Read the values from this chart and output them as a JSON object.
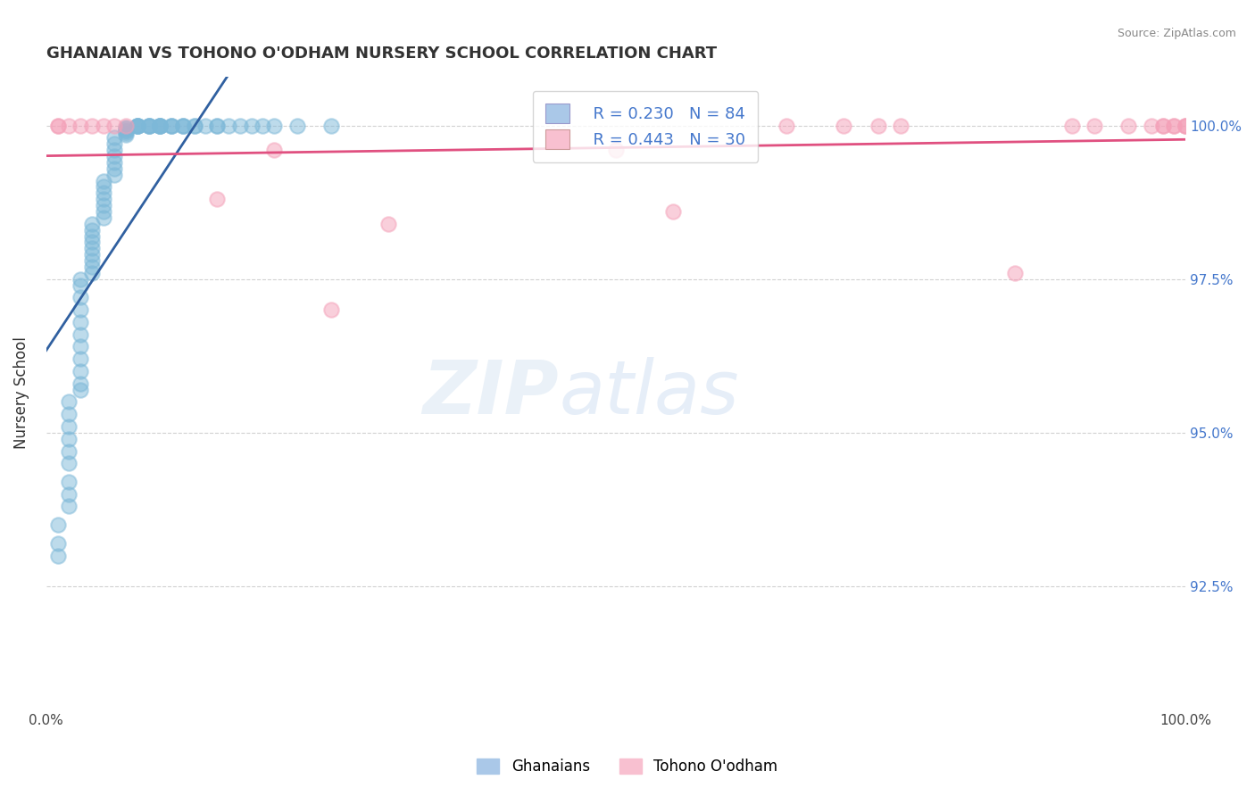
{
  "title": "GHANAIAN VS TOHONO O'ODHAM NURSERY SCHOOL CORRELATION CHART",
  "source": "Source: ZipAtlas.com",
  "ylabel": "Nursery School",
  "xlim": [
    0.0,
    1.0
  ],
  "ylim": [
    0.905,
    1.008
  ],
  "yticks": [
    0.925,
    0.95,
    0.975,
    1.0
  ],
  "ytick_labels": [
    "92.5%",
    "95.0%",
    "97.5%",
    "100.0%"
  ],
  "xticks": [
    0.0,
    0.25,
    0.5,
    0.75,
    1.0
  ],
  "xtick_labels": [
    "0.0%",
    "",
    "",
    "",
    "100.0%"
  ],
  "legend_r_blue": "R = 0.230",
  "legend_n_blue": "N = 84",
  "legend_r_pink": "R = 0.443",
  "legend_n_pink": "N = 30",
  "blue_color": "#7db8d8",
  "pink_color": "#f4a0b8",
  "blue_line_color": "#3060a0",
  "pink_line_color": "#e05080",
  "blue_x": [
    0.01,
    0.01,
    0.01,
    0.02,
    0.02,
    0.02,
    0.02,
    0.02,
    0.02,
    0.02,
    0.02,
    0.02,
    0.03,
    0.03,
    0.03,
    0.03,
    0.03,
    0.03,
    0.03,
    0.03,
    0.03,
    0.03,
    0.03,
    0.04,
    0.04,
    0.04,
    0.04,
    0.04,
    0.04,
    0.04,
    0.04,
    0.04,
    0.05,
    0.05,
    0.05,
    0.05,
    0.05,
    0.05,
    0.05,
    0.06,
    0.06,
    0.06,
    0.06,
    0.06,
    0.06,
    0.06,
    0.07,
    0.07,
    0.07,
    0.07,
    0.07,
    0.07,
    0.08,
    0.08,
    0.08,
    0.08,
    0.08,
    0.09,
    0.09,
    0.09,
    0.09,
    0.1,
    0.1,
    0.1,
    0.1,
    0.1,
    0.11,
    0.11,
    0.11,
    0.12,
    0.12,
    0.12,
    0.13,
    0.13,
    0.14,
    0.15,
    0.15,
    0.16,
    0.17,
    0.18,
    0.19,
    0.2,
    0.22,
    0.25
  ],
  "blue_y": [
    0.93,
    0.932,
    0.935,
    0.938,
    0.94,
    0.942,
    0.945,
    0.947,
    0.949,
    0.951,
    0.953,
    0.955,
    0.957,
    0.958,
    0.96,
    0.962,
    0.964,
    0.966,
    0.968,
    0.97,
    0.972,
    0.974,
    0.975,
    0.976,
    0.977,
    0.978,
    0.979,
    0.98,
    0.981,
    0.982,
    0.983,
    0.984,
    0.985,
    0.986,
    0.987,
    0.988,
    0.989,
    0.99,
    0.991,
    0.992,
    0.993,
    0.994,
    0.995,
    0.996,
    0.997,
    0.998,
    0.9985,
    0.9988,
    0.999,
    0.9992,
    0.9995,
    0.9997,
    1.0,
    1.0,
    1.0,
    1.0,
    1.0,
    1.0,
    1.0,
    1.0,
    1.0,
    1.0,
    1.0,
    1.0,
    1.0,
    1.0,
    1.0,
    1.0,
    1.0,
    1.0,
    1.0,
    1.0,
    1.0,
    1.0,
    1.0,
    1.0,
    1.0,
    1.0,
    1.0,
    1.0,
    1.0,
    1.0,
    1.0,
    1.0
  ],
  "pink_x": [
    0.01,
    0.01,
    0.02,
    0.03,
    0.04,
    0.05,
    0.06,
    0.07,
    0.15,
    0.2,
    0.25,
    0.3,
    0.5,
    0.55,
    0.65,
    0.7,
    0.73,
    0.75,
    0.85,
    0.9,
    0.92,
    0.95,
    0.97,
    0.98,
    0.98,
    0.99,
    0.99,
    1.0,
    1.0,
    1.0
  ],
  "pink_y": [
    1.0,
    1.0,
    1.0,
    1.0,
    1.0,
    1.0,
    1.0,
    1.0,
    0.988,
    0.996,
    0.97,
    0.984,
    0.996,
    0.986,
    1.0,
    1.0,
    1.0,
    1.0,
    0.976,
    1.0,
    1.0,
    1.0,
    1.0,
    1.0,
    1.0,
    1.0,
    1.0,
    1.0,
    1.0,
    1.0
  ]
}
